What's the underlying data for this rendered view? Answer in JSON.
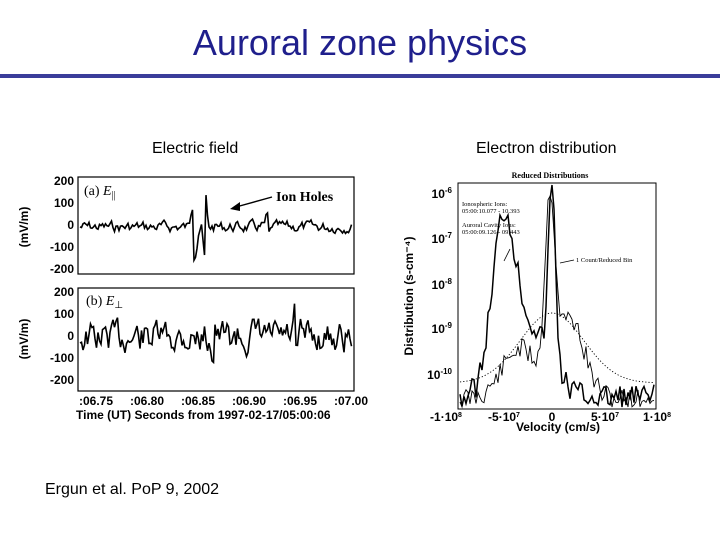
{
  "slide": {
    "title": "Auroral zone physics",
    "left_caption": "Electric field",
    "right_caption": "Electron distribution",
    "citation": "Ergun et al. PoP 9, 2002"
  },
  "colors": {
    "title": "#1f1f8c",
    "rule": "#3a3d9a"
  },
  "left_figure": {
    "panel_a": {
      "tag": "(a)",
      "quantity": "E",
      "subscript": "||",
      "annotation": "Ion Holes",
      "yunit": "(mV/m)",
      "yticks": [
        "200",
        "100",
        "0",
        "-100",
        "-200"
      ]
    },
    "panel_b": {
      "tag": "(b)",
      "quantity": "E",
      "subscript": "⊥",
      "yunit": "(mV/m)",
      "yticks": [
        "200",
        "100",
        "0",
        "-100",
        "-200"
      ]
    },
    "xticks": [
      ":06.75",
      ":06.80",
      ":06.85",
      ":06.90",
      ":06.95",
      ":07.00"
    ],
    "xlabel": "Time (UT) Seconds from 1997-02-17/05:00:06"
  },
  "right_figure": {
    "title": "Reduced Distributions",
    "legend": {
      "ionospheric_label": "Ionospheric Ions:",
      "ionospheric_time": "05:00:10.077 - 10.393",
      "cavity_label": "Auroral Cavity Ions:",
      "cavity_time": "05:00:09.126 - 09.443",
      "noise_label": "1 Count/Reduced Bin"
    },
    "ylabel": "Distribution (s-cm⁻⁴)",
    "xlabel": "Velocity (cm/s)",
    "yticks": [
      {
        "base": "10",
        "exp": "-6"
      },
      {
        "base": "10",
        "exp": "-7"
      },
      {
        "base": "10",
        "exp": "-8"
      },
      {
        "base": "10",
        "exp": "-9"
      },
      {
        "base": "10",
        "exp": "-10"
      }
    ],
    "xticks": [
      {
        "base": "-1·10",
        "exp": "8"
      },
      {
        "base": "-5·10",
        "exp": "7"
      },
      {
        "base": "0",
        "exp": ""
      },
      {
        "base": "5·10",
        "exp": "7"
      },
      {
        "base": "1·10",
        "exp": "8"
      }
    ]
  }
}
